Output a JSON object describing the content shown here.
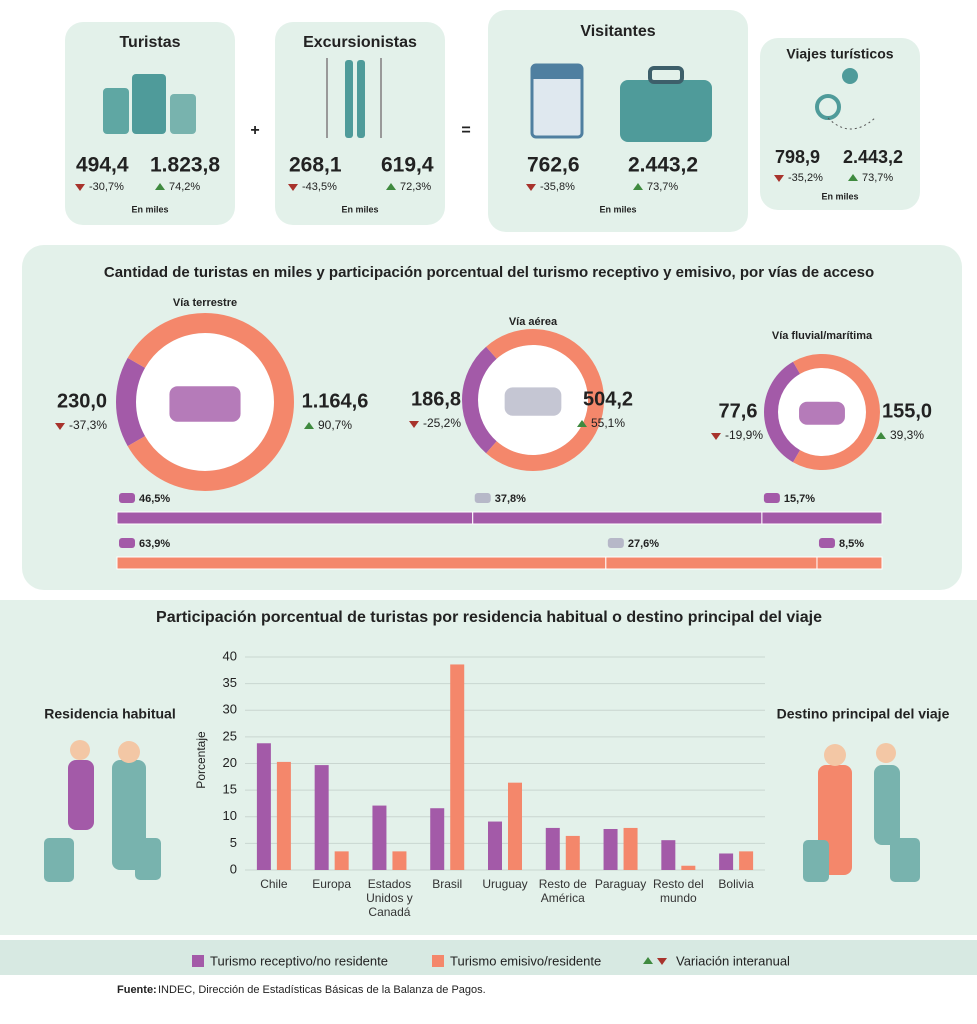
{
  "cards": [
    {
      "title": "Turistas",
      "receptive": {
        "value": "494,4",
        "change": "-30,7%"
      },
      "emissive": {
        "value": "1.823,8",
        "change": "74,2%"
      },
      "unit": "En miles"
    },
    {
      "title": "Excursionistas",
      "receptive": {
        "value": "268,1",
        "change": "-43,5%"
      },
      "emissive": {
        "value": "619,4",
        "change": "72,3%"
      },
      "unit": "En miles"
    },
    {
      "title": "Visitantes",
      "receptive": {
        "value": "762,6",
        "change": "-35,8%"
      },
      "emissive": {
        "value": "2.443,2",
        "change": "73,7%"
      },
      "unit": "En miles"
    },
    {
      "title": "Viajes turísticos",
      "receptive": {
        "value": "798,9",
        "change": "-35,2%"
      },
      "emissive": {
        "value": "2.443,2",
        "change": "73,7%"
      },
      "unit": "En miles"
    }
  ],
  "operators": [
    "+",
    "="
  ],
  "access": {
    "title": "Cantidad de turistas en miles y participación porcentual del turismo receptivo y emisivo, por vías de acceso",
    "ways": [
      {
        "name": "Vía terrestre",
        "receptive": {
          "value": 230.0,
          "label": "230,0"
        },
        "receptive_change": "-37,3%",
        "emissive": {
          "value": 1164.6,
          "label": "1.164,6"
        },
        "emissive_change": "90,7%"
      },
      {
        "name": "Vía aérea",
        "receptive": {
          "value": 186.8,
          "label": "186,8"
        },
        "receptive_change": "-25,2%",
        "emissive": {
          "value": 504.2,
          "label": "504,2"
        },
        "emissive_change": "55,1%"
      },
      {
        "name": "Vía fluvial/marítima",
        "receptive": {
          "value": 77.6,
          "label": "77,6"
        },
        "receptive_change": "-19,9%",
        "emissive": {
          "value": 155.0,
          "label": "155,0"
        },
        "emissive_change": "39,3%"
      }
    ],
    "shares": {
      "receptive": {
        "values": [
          46.5,
          37.8,
          15.7
        ],
        "value_labels": [
          "46,5%",
          "37,8%",
          "15,7%"
        ]
      },
      "emissive": {
        "values": [
          63.9,
          27.6,
          8.5
        ],
        "value_labels": [
          "63,9%",
          "27,6%",
          "8,5%"
        ]
      }
    }
  },
  "chart_data": {
    "type": "bar",
    "title": "Participación porcentual de turistas por residencia habitual o destino principal del viaje",
    "y_label": "Porcentaje",
    "left_label": "Residencia habitual",
    "right_label": "Destino principal del viaje",
    "categories": [
      "Chile",
      "Europa",
      "Estados Unidos y Canadá",
      "Brasil",
      "Uruguay",
      "Resto de América",
      "Paraguay",
      "Resto del mundo",
      "Bolivia"
    ],
    "series": [
      {
        "name": "Turismo receptivo/no residente",
        "color": "#a35aa8",
        "values": [
          23.8,
          19.7,
          12.1,
          11.6,
          9.1,
          7.9,
          7.7,
          5.6,
          3.1
        ]
      },
      {
        "name": "Turismo emisivo/residente",
        "color": "#f4876b",
        "values": [
          20.3,
          3.5,
          3.5,
          38.6,
          16.4,
          6.4,
          7.9,
          0.8,
          3.5
        ]
      }
    ],
    "ylim": [
      0,
      40
    ],
    "yticks": [
      0,
      5,
      10,
      15,
      20,
      25,
      30,
      35,
      40
    ],
    "grid": true,
    "variation_legend": "Variación interanual"
  },
  "source": {
    "label": "Fuente:",
    "text": "INDEC, Dirección de Estadísticas Básicas de la Balanza de Pagos."
  }
}
